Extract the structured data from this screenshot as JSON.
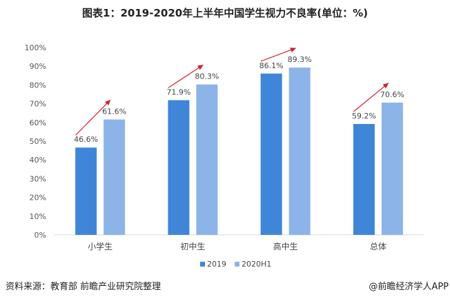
{
  "chart_data": {
    "type": "bar",
    "title": "图表1：2019-2020年上半年中国学生视力不良率(单位：%)",
    "categories": [
      "小学生",
      "初中生",
      "高中生",
      "总体"
    ],
    "series": [
      {
        "name": "2019",
        "values": [
          46.6,
          71.9,
          86.1,
          59.2
        ],
        "color": "#3f86d8"
      },
      {
        "name": "2020H1",
        "values": [
          61.6,
          80.3,
          89.3,
          70.6
        ],
        "color": "#8db4e8"
      }
    ],
    "ylim": [
      0,
      100
    ],
    "yticks": [
      0,
      10,
      20,
      30,
      40,
      50,
      60,
      70,
      80,
      90,
      100
    ],
    "ytick_suffix": "%",
    "grid": false,
    "legend": "bottom-center",
    "annotations": "red arrows indicating increase from 2019 to 2020H1",
    "arrow_color": "#d0202a"
  },
  "footer": {
    "source": "资料来源：教育部 前瞻产业研究院整理",
    "credit": "@前瞻经济学人APP"
  }
}
